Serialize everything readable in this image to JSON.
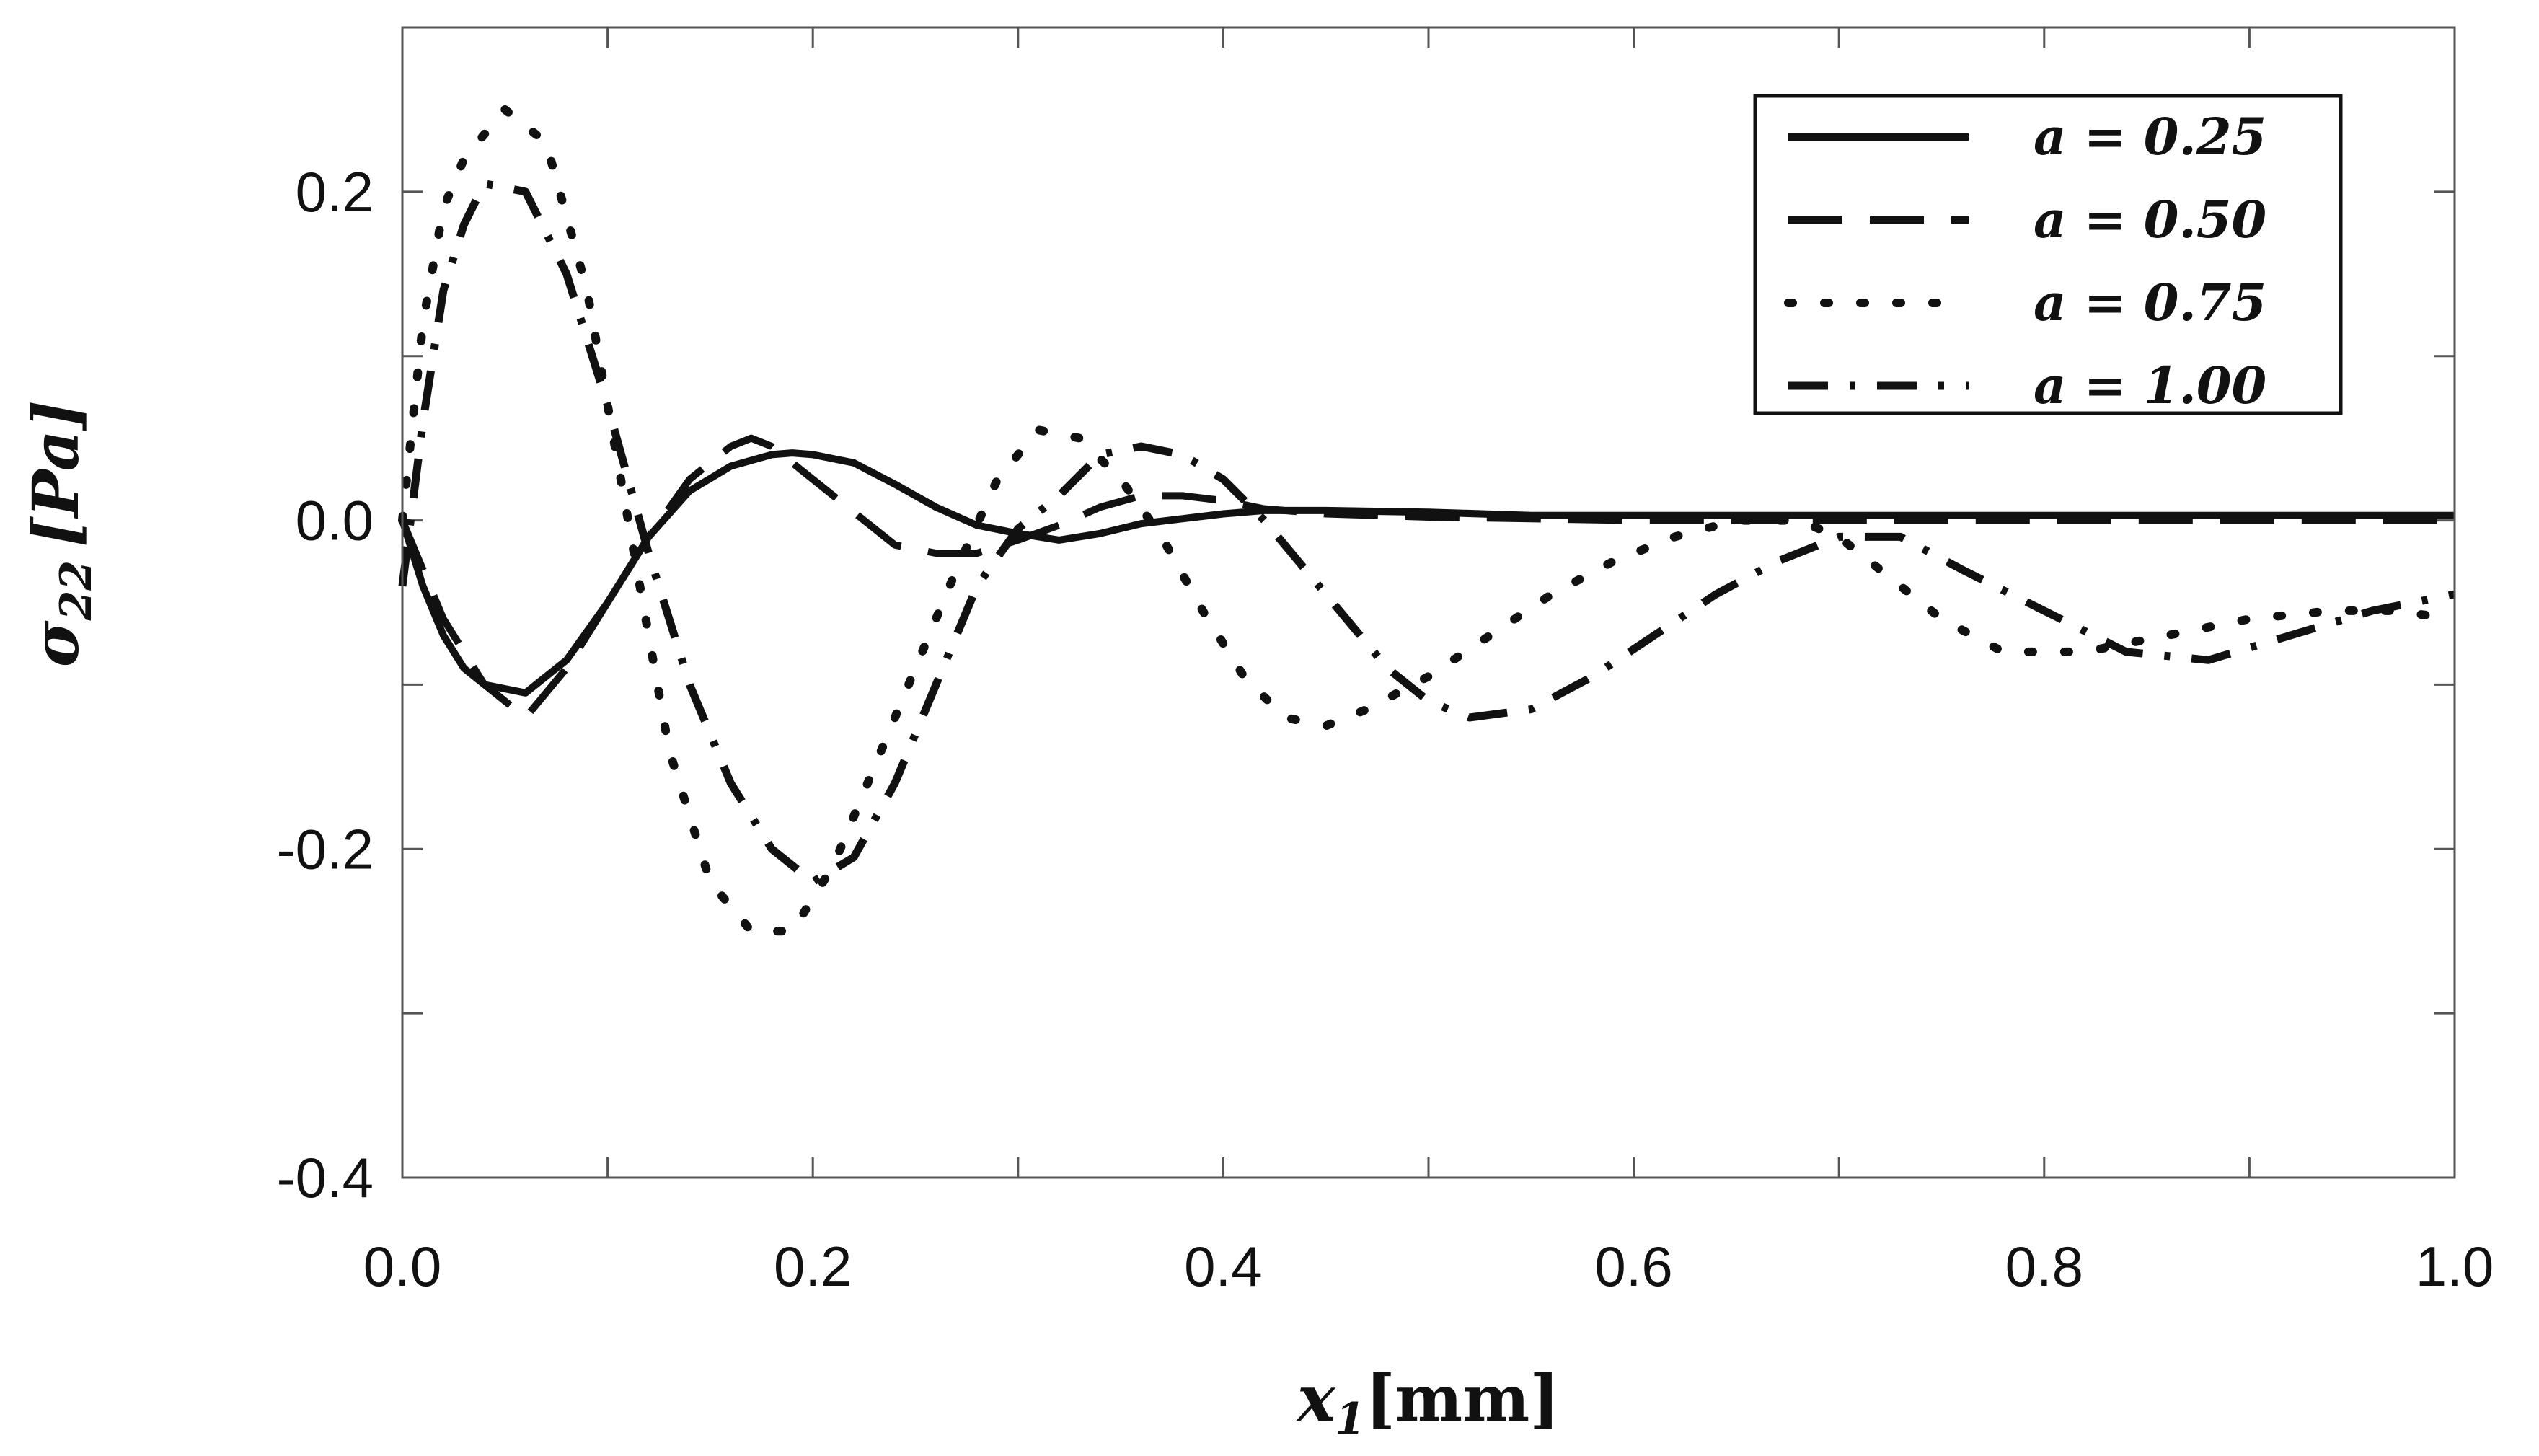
{
  "chart_data": {
    "type": "line",
    "title": "",
    "xlabel": "x_1[mm]",
    "xlabel_parts": {
      "symbol": "x",
      "subscript": "1",
      "unit": "[mm]"
    },
    "ylabel": "σ_22 [Pa]",
    "ylabel_parts": {
      "symbol": "σ",
      "subscript": "22",
      "unit": "[Pa]"
    },
    "xlim": [
      0.0,
      1.0
    ],
    "ylim": [
      -0.4,
      0.3
    ],
    "xticks": [
      0.0,
      0.2,
      0.4,
      0.6,
      0.8,
      1.0
    ],
    "xtick_labels": [
      "0.0",
      "0.2",
      "0.4",
      "0.6",
      "0.8",
      "1.0"
    ],
    "yticks": [
      -0.4,
      -0.2,
      0.0,
      0.2
    ],
    "ytick_labels": [
      "-0.4",
      "-0.2",
      "0.0",
      "0.2"
    ],
    "grid": false,
    "legend_position": "top-right",
    "series": [
      {
        "name": "a = 0.25",
        "style": "solid",
        "x": [
          0.0,
          0.01,
          0.02,
          0.03,
          0.04,
          0.06,
          0.08,
          0.1,
          0.12,
          0.14,
          0.16,
          0.18,
          0.19,
          0.2,
          0.22,
          0.24,
          0.26,
          0.28,
          0.3,
          0.32,
          0.34,
          0.36,
          0.38,
          0.4,
          0.42,
          0.45,
          0.5,
          0.55,
          0.6,
          0.7,
          0.8,
          0.9,
          1.0
        ],
        "y": [
          0.0,
          -0.04,
          -0.07,
          -0.09,
          -0.1,
          -0.105,
          -0.085,
          -0.05,
          -0.01,
          0.018,
          0.033,
          0.04,
          0.041,
          0.04,
          0.035,
          0.022,
          0.008,
          -0.003,
          -0.008,
          -0.012,
          -0.008,
          -0.002,
          0.001,
          0.004,
          0.006,
          0.006,
          0.005,
          0.003,
          0.003,
          0.003,
          0.003,
          0.003,
          0.003
        ]
      },
      {
        "name": "a = 0.50",
        "style": "dashed",
        "x": [
          0.0,
          0.02,
          0.04,
          0.06,
          0.08,
          0.1,
          0.12,
          0.14,
          0.16,
          0.17,
          0.18,
          0.2,
          0.22,
          0.24,
          0.26,
          0.28,
          0.3,
          0.32,
          0.34,
          0.36,
          0.38,
          0.4,
          0.42,
          0.45,
          0.5,
          0.55,
          0.6,
          0.7,
          0.8,
          0.9,
          1.0
        ],
        "y": [
          0.0,
          -0.06,
          -0.1,
          -0.12,
          -0.09,
          -0.05,
          -0.01,
          0.025,
          0.045,
          0.05,
          0.045,
          0.025,
          0.005,
          -0.015,
          -0.02,
          -0.02,
          -0.012,
          -0.003,
          0.008,
          0.015,
          0.015,
          0.012,
          0.007,
          0.004,
          0.002,
          0.001,
          0.0,
          0.0,
          0.0,
          0.0,
          0.0
        ]
      },
      {
        "name": "a = 0.75",
        "style": "dotted",
        "x": [
          0.0,
          0.01,
          0.02,
          0.03,
          0.05,
          0.07,
          0.09,
          0.11,
          0.13,
          0.15,
          0.17,
          0.19,
          0.21,
          0.23,
          0.25,
          0.27,
          0.29,
          0.31,
          0.33,
          0.35,
          0.37,
          0.39,
          0.41,
          0.43,
          0.45,
          0.47,
          0.5,
          0.53,
          0.56,
          0.59,
          0.62,
          0.65,
          0.68,
          0.7,
          0.72,
          0.75,
          0.78,
          0.82,
          0.86,
          0.9,
          0.94,
          0.97,
          1.0
        ],
        "y": [
          0.0,
          0.12,
          0.19,
          0.22,
          0.25,
          0.23,
          0.14,
          0.0,
          -0.14,
          -0.22,
          -0.25,
          -0.25,
          -0.21,
          -0.15,
          -0.09,
          -0.03,
          0.025,
          0.055,
          0.05,
          0.025,
          -0.01,
          -0.055,
          -0.095,
          -0.12,
          -0.125,
          -0.115,
          -0.095,
          -0.07,
          -0.045,
          -0.025,
          -0.01,
          0.0,
          0.0,
          -0.01,
          -0.03,
          -0.06,
          -0.08,
          -0.08,
          -0.07,
          -0.06,
          -0.055,
          -0.055,
          -0.06
        ]
      },
      {
        "name": "a = 1.00",
        "style": "dashdot",
        "x": [
          0.0,
          0.01,
          0.02,
          0.03,
          0.04,
          0.06,
          0.08,
          0.1,
          0.12,
          0.14,
          0.16,
          0.18,
          0.2,
          0.22,
          0.24,
          0.26,
          0.28,
          0.3,
          0.32,
          0.34,
          0.36,
          0.38,
          0.4,
          0.42,
          0.44,
          0.46,
          0.48,
          0.5,
          0.52,
          0.55,
          0.58,
          0.61,
          0.64,
          0.67,
          0.7,
          0.73,
          0.76,
          0.8,
          0.84,
          0.88,
          0.92,
          0.96,
          1.0
        ],
        "y": [
          -0.04,
          0.06,
          0.14,
          0.18,
          0.205,
          0.2,
          0.15,
          0.07,
          -0.02,
          -0.1,
          -0.16,
          -0.2,
          -0.22,
          -0.205,
          -0.16,
          -0.1,
          -0.04,
          -0.005,
          0.015,
          0.04,
          0.045,
          0.04,
          0.025,
          0.0,
          -0.03,
          -0.06,
          -0.09,
          -0.11,
          -0.12,
          -0.115,
          -0.095,
          -0.07,
          -0.045,
          -0.025,
          -0.01,
          -0.01,
          -0.03,
          -0.055,
          -0.08,
          -0.085,
          -0.07,
          -0.055,
          -0.045
        ]
      }
    ]
  }
}
